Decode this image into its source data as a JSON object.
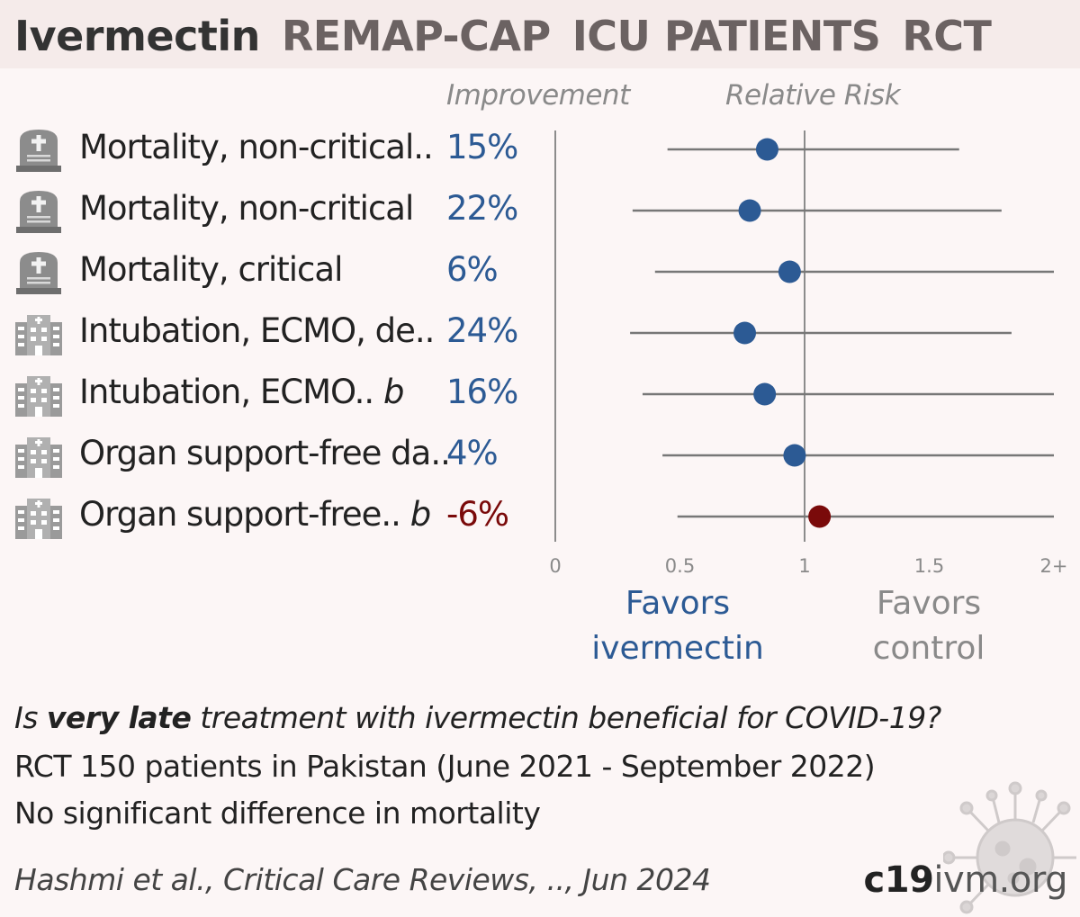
{
  "header": {
    "drug": "Ivermectin",
    "trial": "REMAP-CAP",
    "population": "ICU PATIENTS",
    "design": "RCT"
  },
  "columns": {
    "improvement": "Improvement",
    "relative_risk": "Relative Risk"
  },
  "rows": [
    {
      "icon": "tombstone-icon",
      "label": "Mortality, non-critical..",
      "suffix": "",
      "improvement": "15%",
      "color": "#2c5a94"
    },
    {
      "icon": "tombstone-icon",
      "label": "Mortality, non-critical",
      "suffix": "",
      "improvement": "22%",
      "color": "#2c5a94"
    },
    {
      "icon": "tombstone-icon",
      "label": "Mortality, critical",
      "suffix": "",
      "improvement": "6%",
      "color": "#2c5a94"
    },
    {
      "icon": "hospital-icon",
      "label": "Intubation, ECMO, de..",
      "suffix": "",
      "improvement": "24%",
      "color": "#2c5a94"
    },
    {
      "icon": "hospital-icon",
      "label": "Intubation, ECMO..",
      "suffix": "b",
      "improvement": "16%",
      "color": "#2c5a94"
    },
    {
      "icon": "hospital-icon",
      "label": "Organ support-free da..",
      "suffix": "",
      "improvement": "4%",
      "color": "#2c5a94"
    },
    {
      "icon": "hospital-icon",
      "label": "Organ support-free..",
      "suffix": "b",
      "improvement": "-6%",
      "color": "#7a0a0a"
    }
  ],
  "chart_data": {
    "type": "scatter",
    "subtype": "forest-plot",
    "xlabel": "Relative Risk",
    "xlim": [
      0,
      2
    ],
    "xticks": [
      0,
      0.5,
      1,
      1.5,
      2
    ],
    "xtick_labels": [
      "0",
      "0.5",
      "1",
      "1.5",
      "2+"
    ],
    "reference_line": 1,
    "points": [
      {
        "rr": 0.85,
        "ci_low": 0.45,
        "ci_high": 1.62,
        "color": "#2c5a94"
      },
      {
        "rr": 0.78,
        "ci_low": 0.31,
        "ci_high": 1.79,
        "color": "#2c5a94"
      },
      {
        "rr": 0.94,
        "ci_low": 0.4,
        "ci_high": 2.0,
        "color": "#2c5a94"
      },
      {
        "rr": 0.76,
        "ci_low": 0.3,
        "ci_high": 1.83,
        "color": "#2c5a94"
      },
      {
        "rr": 0.84,
        "ci_low": 0.35,
        "ci_high": 2.0,
        "color": "#2c5a94"
      },
      {
        "rr": 0.96,
        "ci_low": 0.43,
        "ci_high": 2.0,
        "color": "#2c5a94"
      },
      {
        "rr": 1.06,
        "ci_low": 0.49,
        "ci_high": 2.0,
        "color": "#7a0a0a"
      }
    ],
    "favors_left": [
      "Favors",
      "ivermectin"
    ],
    "favors_right": [
      "Favors",
      "control"
    ]
  },
  "footer": {
    "question_pre": "Is ",
    "question_bold": "very late",
    "question_post": " treatment with ivermectin beneficial for COVID-19?",
    "line2": "RCT 150 patients in Pakistan (June 2021 - September 2022)",
    "line3": "No significant difference in mortality",
    "citation": "Hashmi et al., Critical Care Reviews, .., Jun 2024",
    "brand_bold": "c19",
    "brand_rest": "ivm.org"
  }
}
